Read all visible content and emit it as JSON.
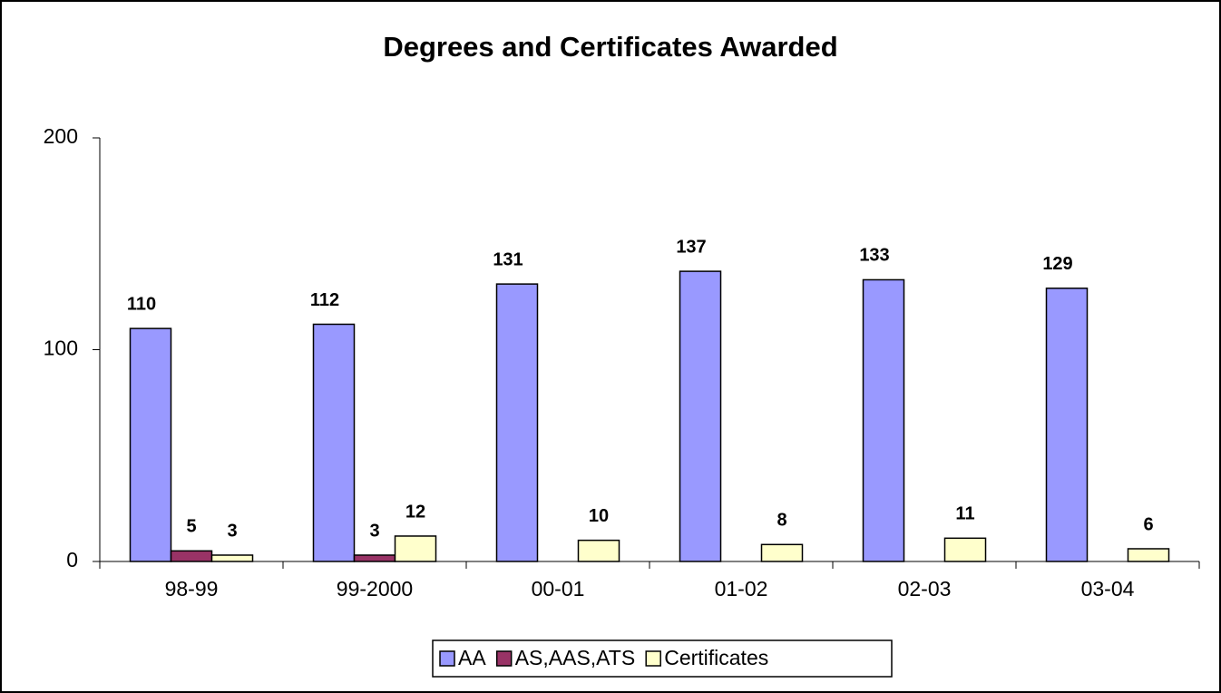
{
  "chart_data": {
    "type": "bar",
    "title": "Degrees and Certificates Awarded",
    "categories": [
      "98-99",
      "99-2000",
      "00-01",
      "01-02",
      "02-03",
      "03-04"
    ],
    "series": [
      {
        "name": "AA",
        "color": "#9999ff",
        "values": [
          110,
          112,
          131,
          137,
          133,
          129
        ]
      },
      {
        "name": "AS,AAS,ATS",
        "color": "#993366",
        "values": [
          5,
          3,
          null,
          null,
          null,
          null
        ]
      },
      {
        "name": "Certificates",
        "color": "#ffffcc",
        "values": [
          3,
          12,
          10,
          8,
          11,
          6
        ]
      }
    ],
    "ylim": [
      0,
      200
    ],
    "yticks": [
      0,
      100,
      200
    ],
    "grid": false,
    "legend": "bottom"
  }
}
